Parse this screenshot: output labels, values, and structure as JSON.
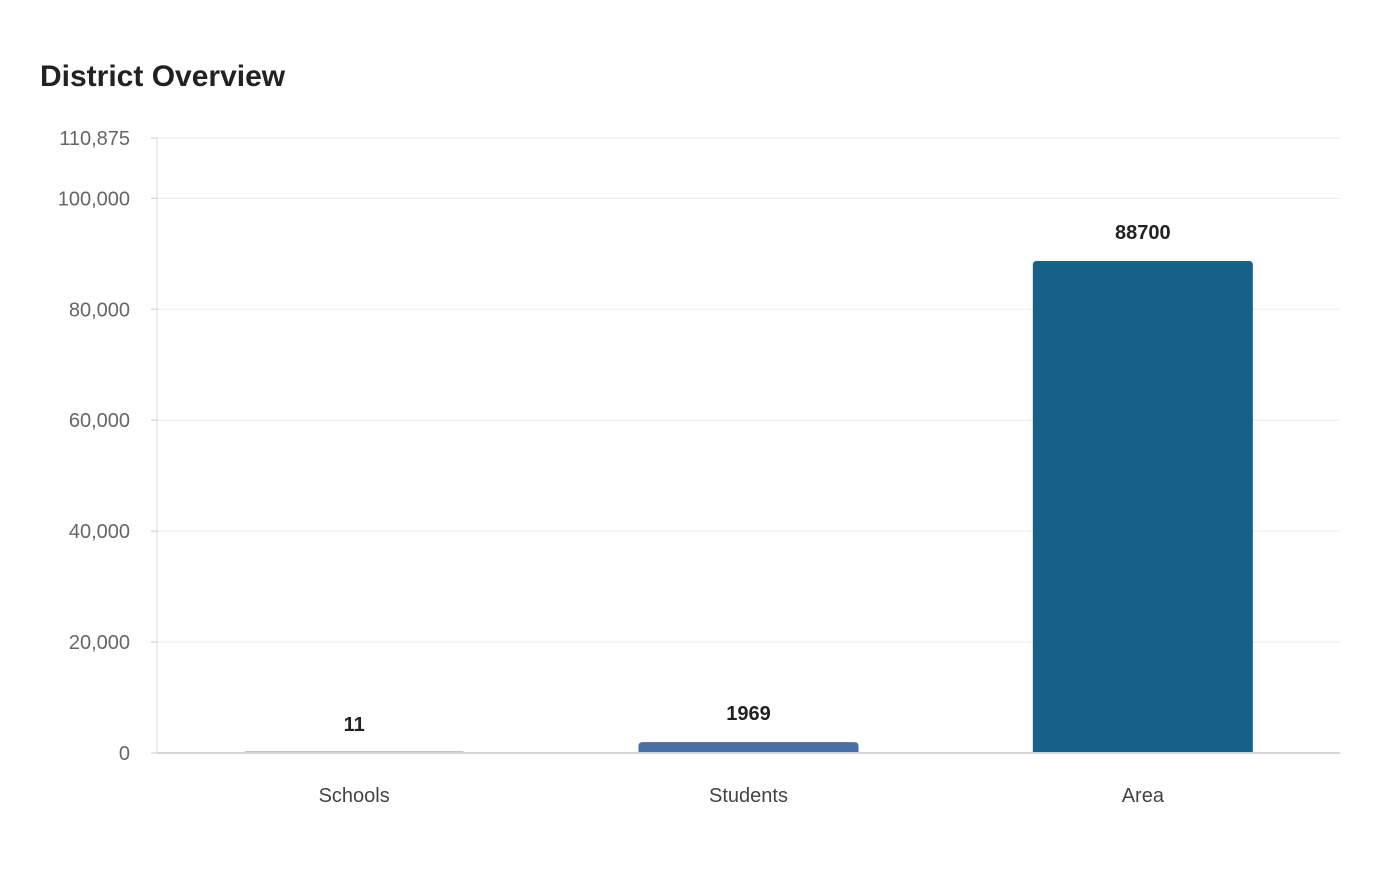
{
  "chart_data": {
    "type": "bar",
    "title": "District Overview",
    "categories": [
      "Schools",
      "Students",
      "Area"
    ],
    "values": [
      11,
      1969,
      88700
    ],
    "data_labels": [
      "11",
      "1969",
      "88700"
    ],
    "colors": [
      "#8a8a8a",
      "#4a6fa5",
      "#176087"
    ],
    "xlabel": "",
    "ylabel": "",
    "ylim": [
      0,
      110875
    ],
    "yticks": [
      0,
      20000,
      40000,
      60000,
      80000,
      100000,
      110875
    ],
    "ytick_labels": [
      "0",
      "20,000",
      "40,000",
      "60,000",
      "80,000",
      "100,000",
      "110,875"
    ],
    "grid": true,
    "legend": "none"
  }
}
